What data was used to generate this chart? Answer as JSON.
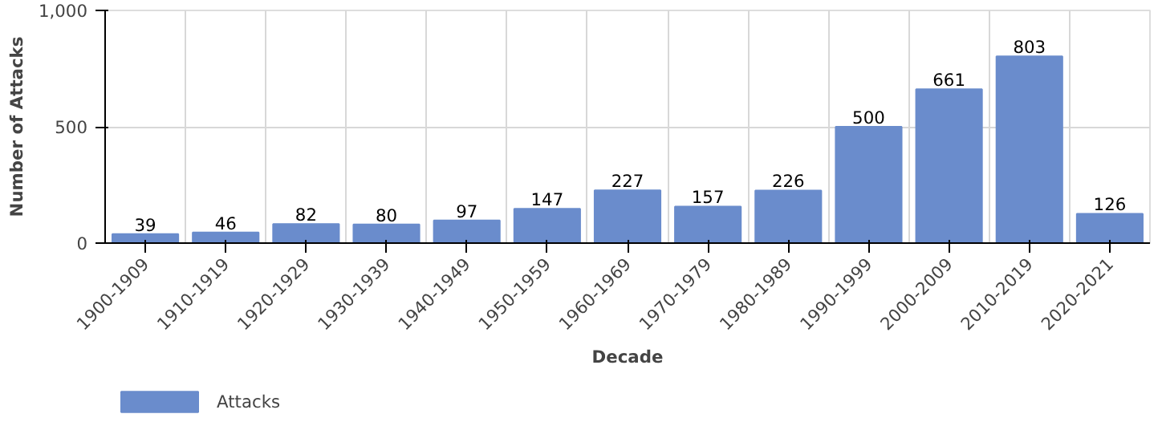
{
  "chart_data": {
    "type": "bar",
    "xlabel": "Decade",
    "ylabel": "Number of Attacks",
    "categories": [
      "1900-1909",
      "1910-1919",
      "1920-1929",
      "1930-1939",
      "1940-1949",
      "1950-1959",
      "1960-1969",
      "1970-1979",
      "1980-1989",
      "1990-1999",
      "2000-2009",
      "2010-2019",
      "2020-2021"
    ],
    "series": [
      {
        "name": "Attacks",
        "color": "#6a8ccc",
        "values": [
          39,
          46,
          82,
          80,
          97,
          147,
          227,
          157,
          226,
          500,
          661,
          803,
          126
        ]
      }
    ],
    "ylim": [
      0,
      1000
    ],
    "yticks": [
      0,
      500,
      {
        "value": 1000,
        "label": "1,000"
      }
    ],
    "grid": true,
    "legend": "bottom left",
    "data_labels": true
  }
}
